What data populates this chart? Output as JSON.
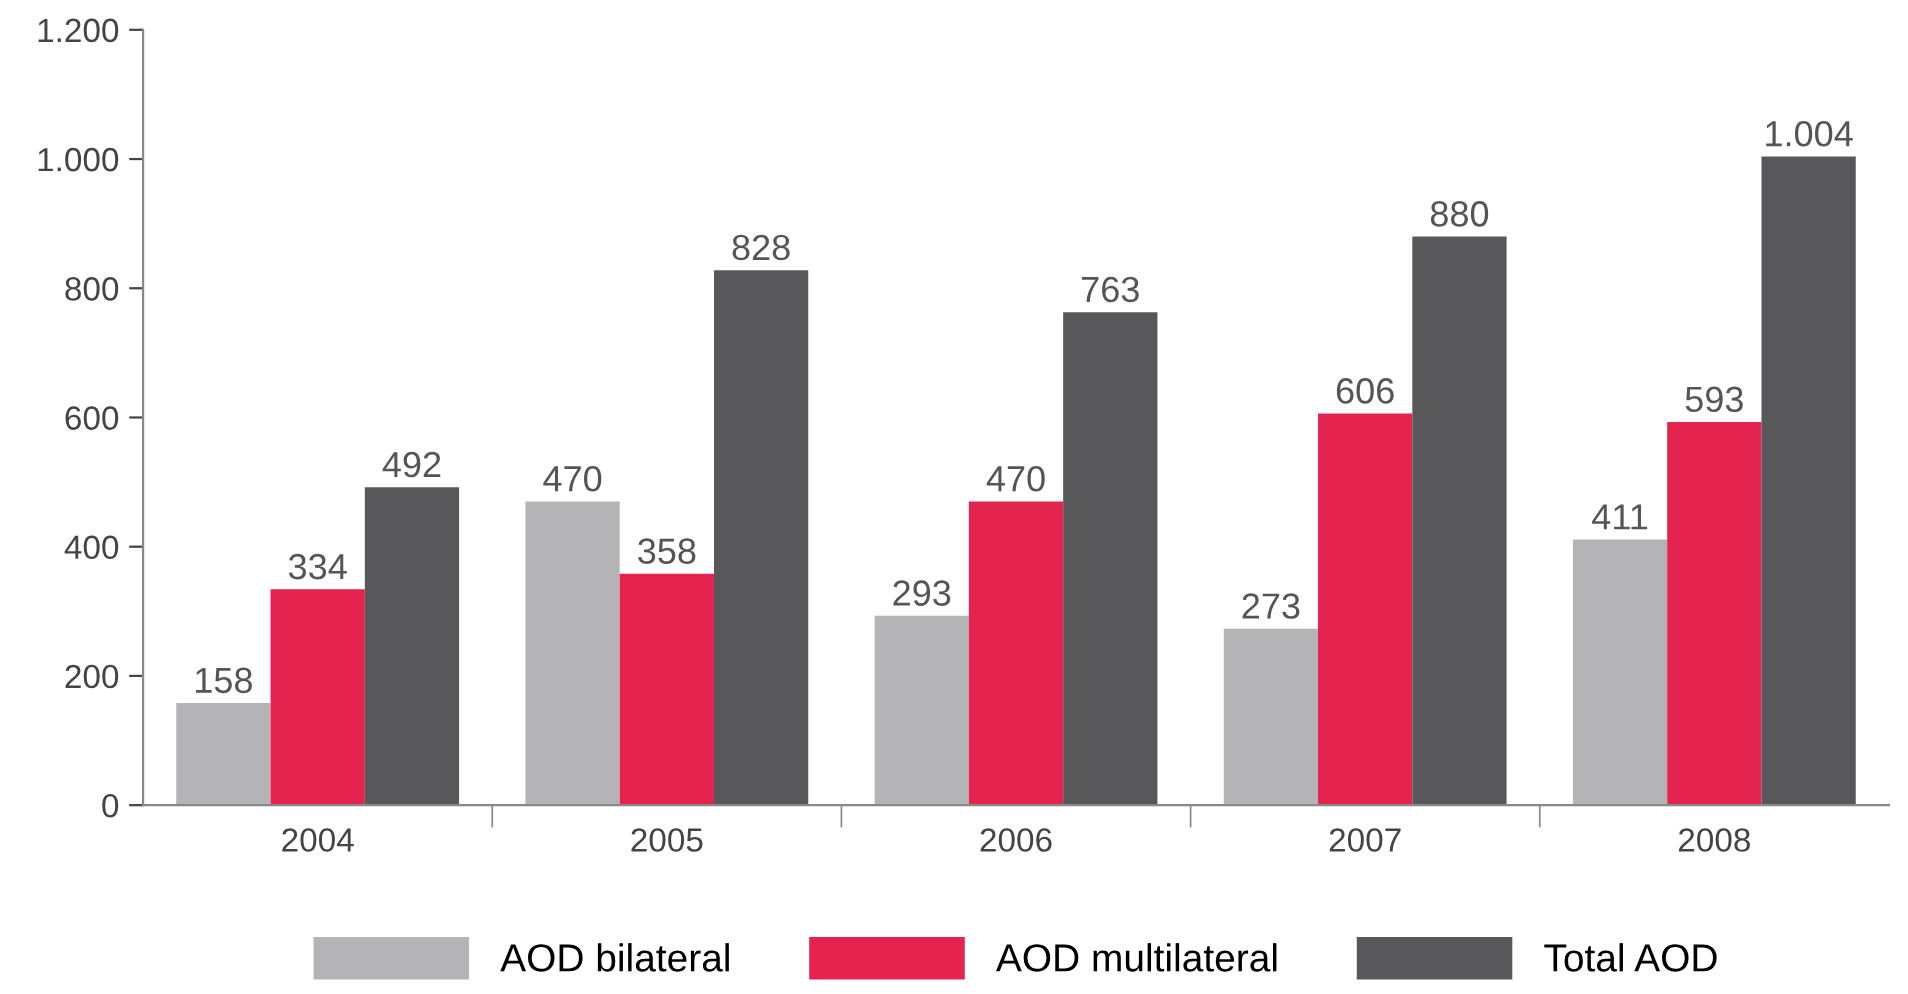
{
  "chart_data": {
    "type": "bar",
    "categories": [
      "2004",
      "2005",
      "2006",
      "2007",
      "2008"
    ],
    "series": [
      {
        "name": "AOD bilateral",
        "color": "#b4b4b6",
        "values": [
          158,
          470,
          293,
          273,
          411
        ],
        "value_labels": [
          "158",
          "470",
          "293",
          "273",
          "411"
        ]
      },
      {
        "name": "AOD multilateral",
        "color": "#e4234f",
        "values": [
          334,
          358,
          470,
          606,
          593
        ],
        "value_labels": [
          "334",
          "358",
          "470",
          "606",
          "593"
        ]
      },
      {
        "name": "Total AOD",
        "color": "#58585a",
        "values": [
          492,
          828,
          763,
          880,
          1004
        ],
        "value_labels": [
          "492",
          "828",
          "763",
          "880",
          "1.004"
        ]
      }
    ],
    "ylim": [
      0,
      1200
    ],
    "yticks": [
      0,
      200,
      400,
      600,
      800,
      {
        "value": 1000,
        "label": "1.000"
      },
      {
        "value": 1200,
        "label": "1.200"
      }
    ],
    "grid": false,
    "legend": "bottom"
  }
}
